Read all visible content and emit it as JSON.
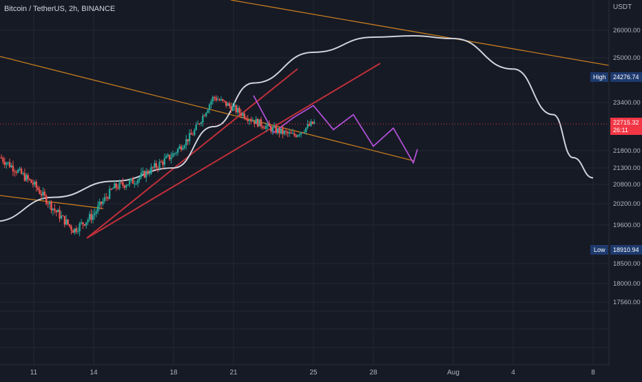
{
  "header": {
    "symbol": "Bitcoin / TetherUS, 2h, BINANCE",
    "currency": "USDT"
  },
  "colors": {
    "background": "#161a25",
    "grid": "#242833",
    "text": "#b2b5be",
    "up": "#26a69a",
    "down": "#ef5350",
    "orange_line": "#c77d1e",
    "red_line": "#c2303a",
    "white_curve": "#d1d4dc",
    "purple_projection": "#b04fd6",
    "label_bg": "#1e3a6e",
    "price_label_bg": "#f23645"
  },
  "chart_data": {
    "type": "candlestick",
    "title": "Bitcoin / TetherUS, 2h, BINANCE",
    "x_ticks": [
      "11",
      "14",
      "18",
      "21",
      "25",
      "28",
      "Aug",
      "4",
      "8"
    ],
    "y_ticks": [
      "26000.00",
      "25000.00",
      "23400.00",
      "21800.00",
      "21300.00",
      "20800.00",
      "20200.00",
      "19600.00",
      "18500.00",
      "18000.00",
      "17560.00"
    ],
    "y_range": [
      17300,
      26600
    ],
    "grid": true,
    "markers": {
      "high": {
        "label": "High",
        "value": "24276.74"
      },
      "low": {
        "label": "Low",
        "value": "18910.94"
      },
      "last": {
        "value": "22715.32",
        "countdown": "26:11"
      }
    },
    "candles": {
      "description": "2h OHLC candles, Jul 9 – Jul 25",
      "start": "2022-07-09",
      "step_hours": 2,
      "close_path": [
        {
          "date": "2022-07-09",
          "close": 21750
        },
        {
          "date": "2022-07-10",
          "close": 21300
        },
        {
          "date": "2022-07-11",
          "close": 20800
        },
        {
          "date": "2022-07-12",
          "close": 20050
        },
        {
          "date": "2022-07-13",
          "close": 19450
        },
        {
          "date": "2022-07-14",
          "close": 19900
        },
        {
          "date": "2022-07-15",
          "close": 20700
        },
        {
          "date": "2022-07-16",
          "close": 20900
        },
        {
          "date": "2022-07-17",
          "close": 21300
        },
        {
          "date": "2022-07-18",
          "close": 21700
        },
        {
          "date": "2022-07-19",
          "close": 22400
        },
        {
          "date": "2022-07-20",
          "close": 23600
        },
        {
          "date": "2022-07-21",
          "close": 23200
        },
        {
          "date": "2022-07-22",
          "close": 22800
        },
        {
          "date": "2022-07-23",
          "close": 22500
        },
        {
          "date": "2022-07-24",
          "close": 22300
        },
        {
          "date": "2022-07-25",
          "close": 22715
        }
      ]
    },
    "drawings": {
      "moving_average_curve": [
        {
          "date": "2022-07-09",
          "value": 19700
        },
        {
          "date": "2022-07-12",
          "value": 20400
        },
        {
          "date": "2022-07-15",
          "value": 20900
        },
        {
          "date": "2022-07-18",
          "value": 21300
        },
        {
          "date": "2022-07-20",
          "value": 22600
        },
        {
          "date": "2022-07-22",
          "value": 24100
        },
        {
          "date": "2022-07-25",
          "value": 25200
        },
        {
          "date": "2022-07-28",
          "value": 25750
        },
        {
          "date": "2022-07-30",
          "value": 25800
        },
        {
          "date": "2022-08-01",
          "value": 25700
        },
        {
          "date": "2022-08-04",
          "value": 24600
        },
        {
          "date": "2022-08-06",
          "value": 23000
        },
        {
          "date": "2022-08-07",
          "value": 21600
        },
        {
          "date": "2022-08-08",
          "value": 21000
        }
      ],
      "projection_path": [
        {
          "date": "2022-07-22",
          "value": 23650
        },
        {
          "date": "2022-07-23",
          "value": 22400
        },
        {
          "date": "2022-07-24",
          "value": 22900
        },
        {
          "date": "2022-07-25",
          "value": 23300
        },
        {
          "date": "2022-07-26",
          "value": 22500
        },
        {
          "date": "2022-07-27",
          "value": 23000
        },
        {
          "date": "2022-07-28",
          "value": 21950
        },
        {
          "date": "2022-07-29",
          "value": 22550
        },
        {
          "date": "2022-07-30",
          "value": 21450
        },
        {
          "date": "2022-07-30",
          "value": 21850
        }
      ]
    }
  }
}
